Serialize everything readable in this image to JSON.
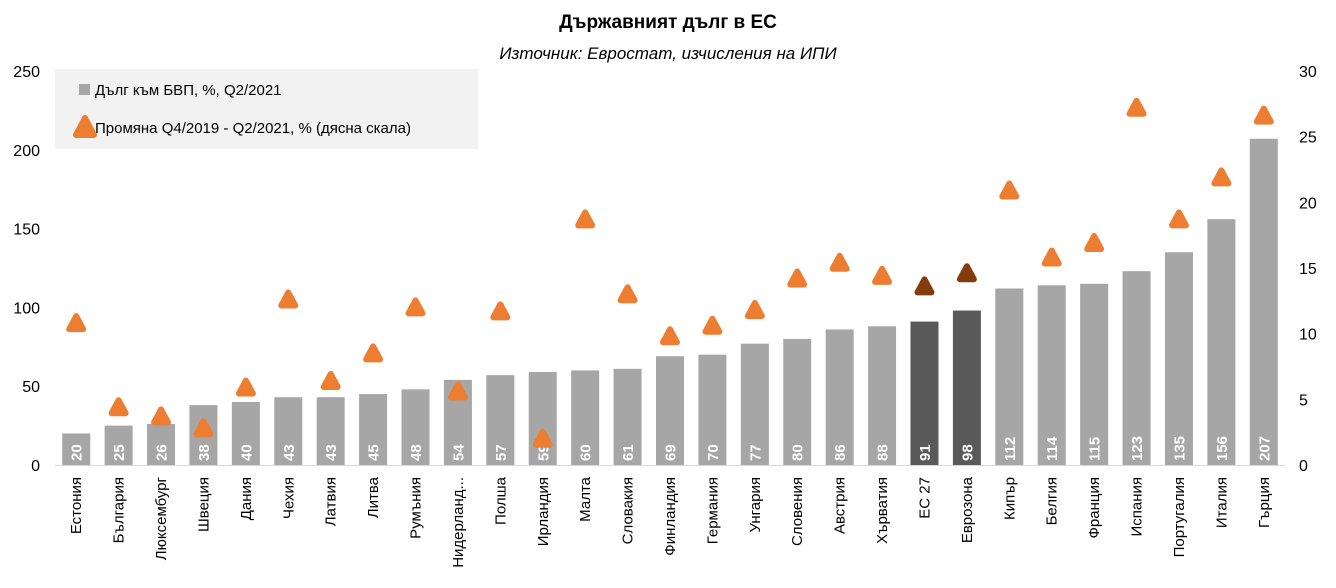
{
  "chart_data": {
    "type": "bar",
    "title": "Държавният дълг в ЕС",
    "subtitle": "Източник: Евростат, изчисления на ИПИ",
    "categories": [
      "Естония",
      "България",
      "Люксембург",
      "Швеция",
      "Дания",
      "Чехия",
      "Латвия",
      "Литва",
      "Румъния",
      "Нидерланд...",
      "Полша",
      "Ирландия",
      "Малта",
      "Словакия",
      "Финландия",
      "Германия",
      "Унгария",
      "Словения",
      "Австрия",
      "Хърватия",
      "ЕС 27",
      "Еврозона",
      "Кипър",
      "Белгия",
      "Франция",
      "Испания",
      "Португалия",
      "Италия",
      "Гърция"
    ],
    "series": [
      {
        "name": "Дълг към БВП, %, Q2/2021",
        "type": "bar",
        "axis": "left",
        "values": [
          20,
          25,
          26,
          38,
          40,
          43,
          43,
          45,
          48,
          54,
          57,
          59,
          60,
          61,
          69,
          70,
          77,
          80,
          86,
          88,
          91,
          98,
          112,
          114,
          115,
          123,
          135,
          156,
          207
        ]
      },
      {
        "name": "Промяна Q4/2019 - Q2/2021, % (дясна скала)",
        "type": "marker",
        "axis": "right",
        "values": [
          10.8,
          4.4,
          3.7,
          2.8,
          5.9,
          12.6,
          6.4,
          8.5,
          12.0,
          5.6,
          11.7,
          2.0,
          18.7,
          13.0,
          9.8,
          10.6,
          11.8,
          14.2,
          15.4,
          14.4,
          13.6,
          14.6,
          20.9,
          15.8,
          16.9,
          27.2,
          18.7,
          21.9,
          26.6
        ]
      }
    ],
    "highlight_categories": [
      "ЕС 27",
      "Еврозона"
    ],
    "yaxis_left": {
      "min": 0,
      "max": 250,
      "ticks": [
        0,
        50,
        100,
        150,
        200,
        250
      ]
    },
    "yaxis_right": {
      "min": 0,
      "max": 30,
      "ticks": [
        0,
        5,
        10,
        15,
        20,
        25,
        30
      ]
    },
    "legend_position": "top-left",
    "grid": false,
    "colors": {
      "bar": "#a6a6a6",
      "bar_highlight": "#595959",
      "marker": "#ed7d31",
      "marker_highlight": "#843c0c",
      "label": "#ffffff"
    }
  }
}
